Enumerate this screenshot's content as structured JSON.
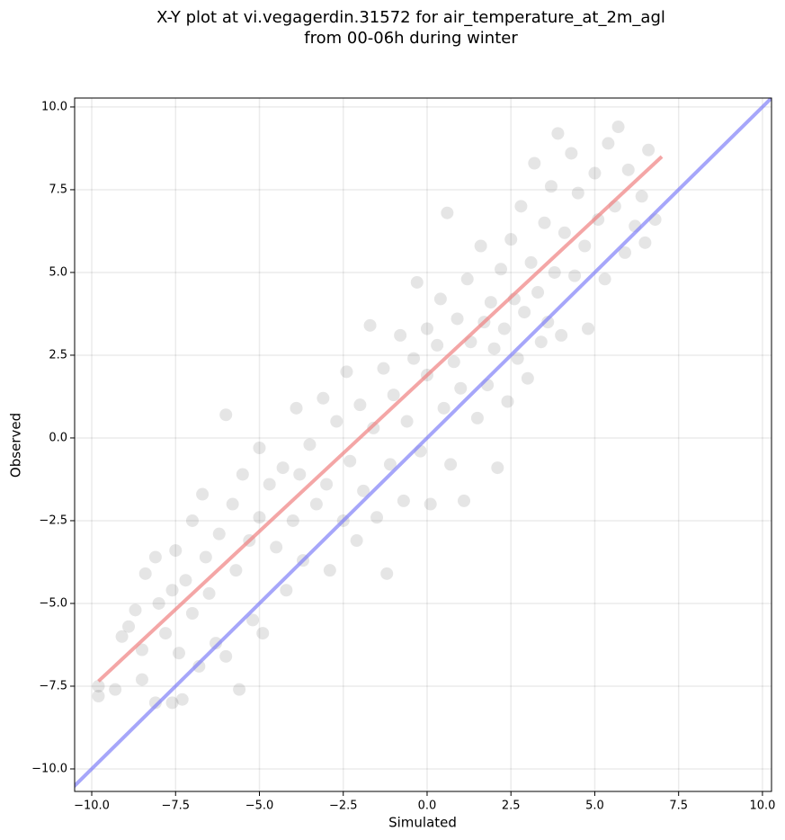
{
  "chart_data": {
    "type": "scatter",
    "title": [
      "X-Y plot at vi.vegagerdin.31572 for air_temperature_at_2m_agl",
      "from 00-06h during winter"
    ],
    "x_label": "Simulated",
    "y_label": "Observed",
    "xlim": [
      -10.51,
      10.27
    ],
    "ylim": [
      -10.68,
      10.27
    ],
    "xticks": [
      {
        "value": -10,
        "label": "−10.0"
      },
      {
        "value": -7.5,
        "label": "−7.5"
      },
      {
        "value": -5,
        "label": "−5.0"
      },
      {
        "value": -2.5,
        "label": "−2.5"
      },
      {
        "value": 0,
        "label": "0.0"
      },
      {
        "value": 2.5,
        "label": "2.5"
      },
      {
        "value": 5,
        "label": "5.0"
      },
      {
        "value": 7.5,
        "label": "7.5"
      },
      {
        "value": 10,
        "label": "10.0"
      }
    ],
    "yticks": [
      {
        "value": -10,
        "label": "−10.0"
      },
      {
        "value": -7.5,
        "label": "−7.5"
      },
      {
        "value": -5,
        "label": "−5.0"
      },
      {
        "value": -2.5,
        "label": "−2.5"
      },
      {
        "value": 0,
        "label": "0.0"
      },
      {
        "value": 2.5,
        "label": "2.5"
      },
      {
        "value": 5,
        "label": "5.0"
      },
      {
        "value": 7.5,
        "label": "7.5"
      },
      {
        "value": 10,
        "label": "10.0"
      }
    ],
    "grid": true,
    "point_color": "#000000",
    "x": [
      -9.8,
      -9.8,
      -9.3,
      -9.1,
      -8.9,
      -8.7,
      -8.5,
      -8.5,
      -8.4,
      -8.1,
      -8.1,
      -8.0,
      -7.8,
      -7.6,
      -7.6,
      -7.5,
      -7.4,
      -7.3,
      -7.2,
      -7.0,
      -7.0,
      -6.8,
      -6.7,
      -6.6,
      -6.5,
      -6.3,
      -6.2,
      -6.0,
      -6.0,
      -5.8,
      -5.7,
      -5.6,
      -5.5,
      -5.3,
      -5.2,
      -5.0,
      -5.0,
      -4.9,
      -4.7,
      -4.5,
      -4.3,
      -4.2,
      -4.0,
      -3.9,
      -3.8,
      -3.7,
      -3.5,
      -3.3,
      -3.1,
      -3.0,
      -2.9,
      -2.7,
      -2.5,
      -2.4,
      -2.3,
      -2.1,
      -2.0,
      -1.9,
      -1.7,
      -1.6,
      -1.5,
      -1.3,
      -1.2,
      -1.1,
      -1.0,
      -0.8,
      -0.7,
      -0.6,
      -0.4,
      -0.3,
      -0.2,
      0.0,
      0.0,
      0.1,
      0.3,
      0.4,
      0.5,
      0.6,
      0.7,
      0.8,
      0.9,
      1.0,
      1.1,
      1.2,
      1.3,
      1.5,
      1.6,
      1.7,
      1.8,
      1.9,
      2.0,
      2.1,
      2.2,
      2.3,
      2.4,
      2.5,
      2.6,
      2.7,
      2.8,
      2.9,
      3.0,
      3.1,
      3.2,
      3.3,
      3.4,
      3.5,
      3.6,
      3.7,
      3.8,
      3.9,
      4.0,
      4.1,
      4.3,
      4.4,
      4.5,
      4.7,
      4.8,
      5.0,
      5.1,
      5.3,
      5.4,
      5.6,
      5.7,
      5.9,
      6.0,
      6.2,
      6.4,
      6.5,
      6.6,
      6.8
    ],
    "y": [
      -7.5,
      -7.8,
      -7.6,
      -6.0,
      -5.7,
      -5.2,
      -6.4,
      -7.3,
      -4.1,
      -8.0,
      -3.6,
      -5.0,
      -5.9,
      -4.6,
      -8.0,
      -3.4,
      -6.5,
      -7.9,
      -4.3,
      -5.3,
      -2.5,
      -6.9,
      -1.7,
      -3.6,
      -4.7,
      -6.2,
      -2.9,
      0.7,
      -6.6,
      -2.0,
      -4.0,
      -7.6,
      -1.1,
      -3.1,
      -5.5,
      -0.3,
      -2.4,
      -5.9,
      -1.4,
      -3.3,
      -0.9,
      -4.6,
      -2.5,
      0.9,
      -1.1,
      -3.7,
      -0.2,
      -2.0,
      1.2,
      -1.4,
      -4.0,
      0.5,
      -2.5,
      2.0,
      -0.7,
      -3.1,
      1.0,
      -1.6,
      3.4,
      0.3,
      -2.4,
      2.1,
      -4.1,
      -0.8,
      1.3,
      3.1,
      -1.9,
      0.5,
      2.4,
      4.7,
      -0.4,
      1.9,
      3.3,
      -2.0,
      2.8,
      4.2,
      0.9,
      6.8,
      -0.8,
      2.3,
      3.6,
      1.5,
      -1.9,
      4.8,
      2.9,
      0.6,
      5.8,
      3.5,
      1.6,
      4.1,
      2.7,
      -0.9,
      5.1,
      3.3,
      1.1,
      6.0,
      4.2,
      2.4,
      7.0,
      3.8,
      1.8,
      5.3,
      8.3,
      4.4,
      2.9,
      6.5,
      3.5,
      7.6,
      5.0,
      9.2,
      3.1,
      6.2,
      8.6,
      4.9,
      7.4,
      5.8,
      3.3,
      8.0,
      6.6,
      4.8,
      8.9,
      7.0,
      9.4,
      5.6,
      8.1,
      6.4,
      7.3,
      5.9,
      8.7,
      6.6
    ],
    "lines": [
      {
        "color": "#f08080",
        "x": [
          -9.8,
          7.0
        ],
        "y": [
          -7.35,
          8.5
        ]
      },
      {
        "color": "#8080f8",
        "x": [
          -10.6,
          10.3
        ],
        "y": [
          -10.6,
          10.3
        ]
      }
    ]
  }
}
